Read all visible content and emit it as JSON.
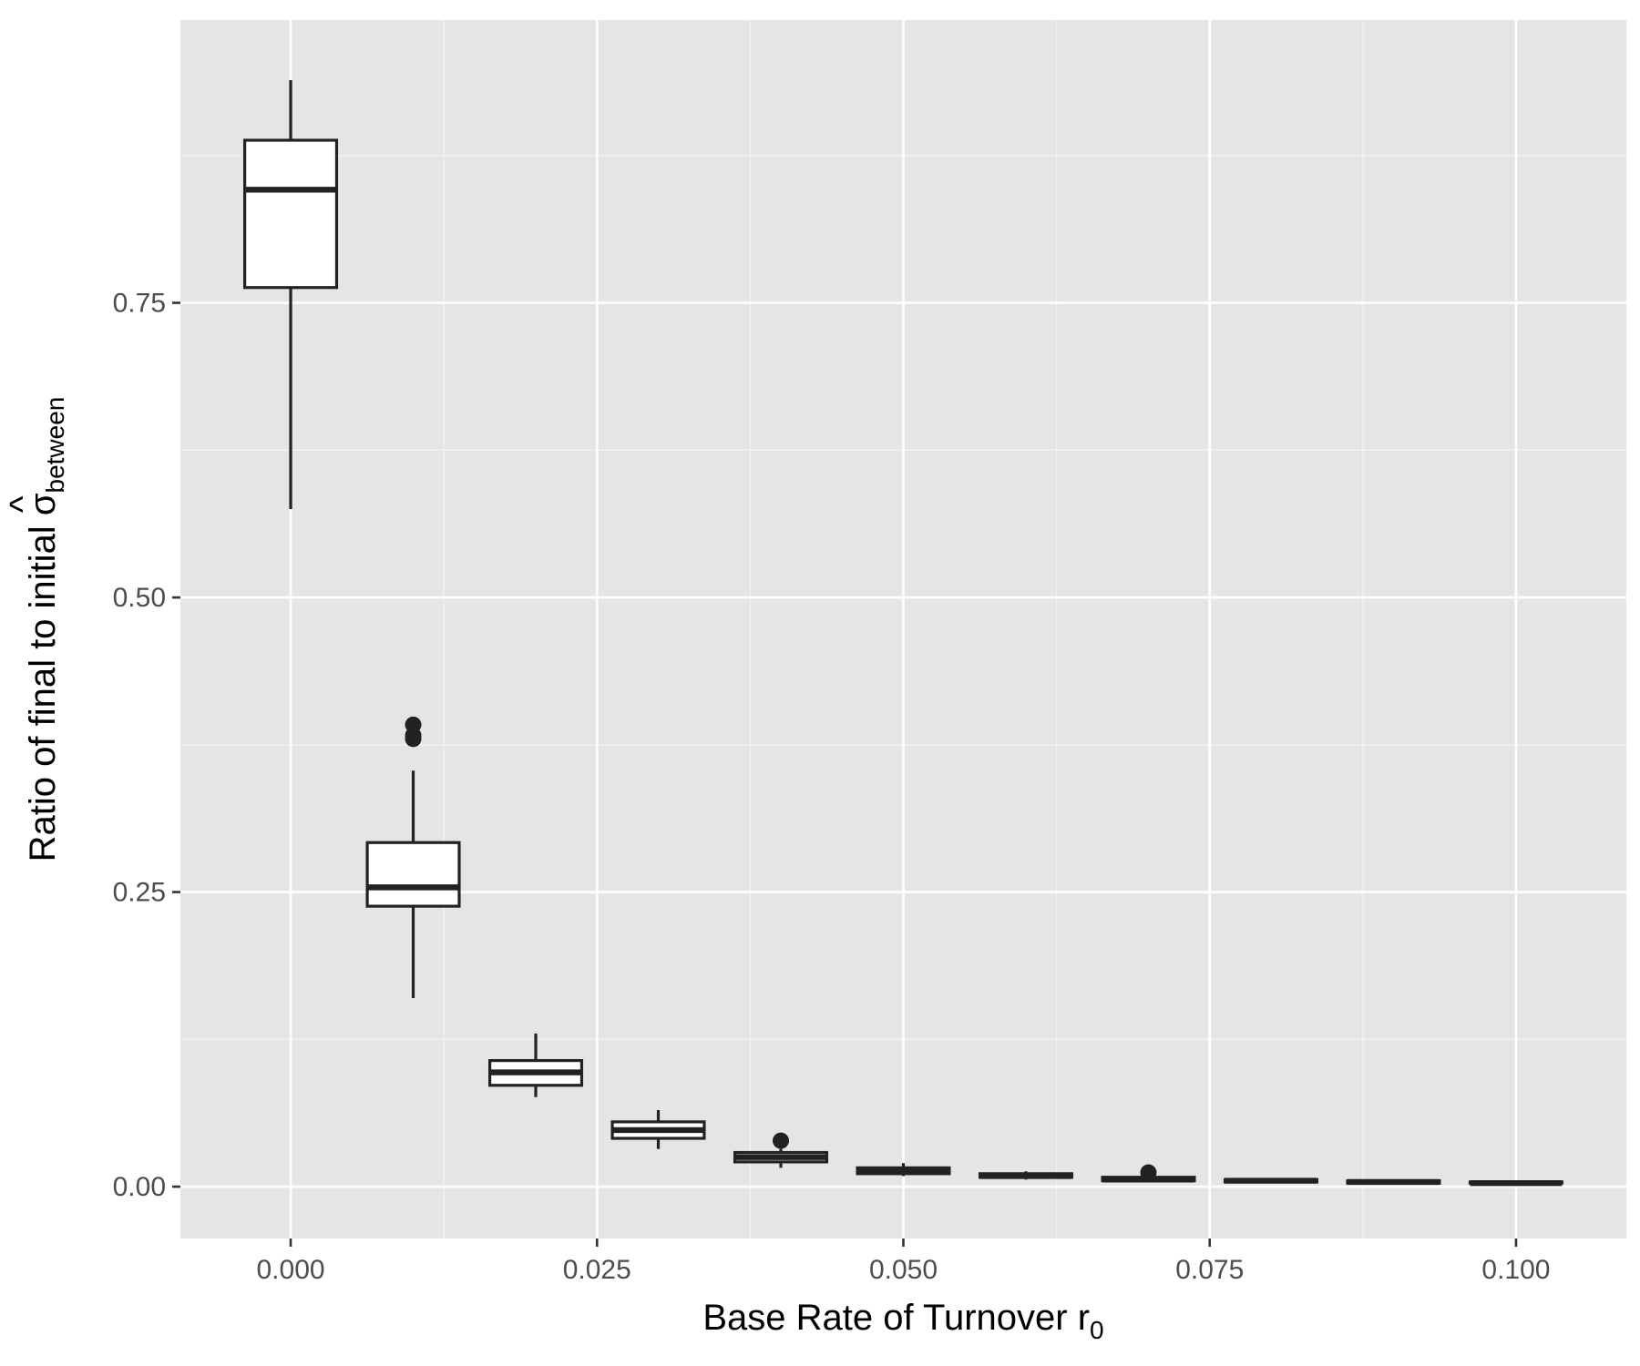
{
  "chart_data": {
    "type": "boxplot",
    "xlabel": {
      "main": "Base Rate of Turnover r",
      "subscript": "0"
    },
    "ylabel": {
      "main": "Ratio of final to initial ",
      "symbol": "σ",
      "hat": "^",
      "subscript": "between"
    },
    "xlim": [
      -0.009,
      0.109
    ],
    "ylim": [
      -0.044,
      0.99
    ],
    "x_ticks": [
      {
        "value": 0.0,
        "label": "0.000"
      },
      {
        "value": 0.025,
        "label": "0.025"
      },
      {
        "value": 0.05,
        "label": "0.050"
      },
      {
        "value": 0.075,
        "label": "0.075"
      },
      {
        "value": 0.1,
        "label": "0.100"
      }
    ],
    "y_ticks": [
      {
        "value": 0.0,
        "label": "0.00"
      },
      {
        "value": 0.25,
        "label": "0.25"
      },
      {
        "value": 0.5,
        "label": "0.50"
      },
      {
        "value": 0.75,
        "label": "0.75"
      }
    ],
    "grid": true,
    "box_width": 0.0075,
    "boxes": [
      {
        "x": 0.0,
        "whisker_low": 0.575,
        "q1": 0.763,
        "median": 0.846,
        "q3": 0.888,
        "whisker_high": 0.939,
        "outliers": []
      },
      {
        "x": 0.01,
        "whisker_low": 0.16,
        "q1": 0.238,
        "median": 0.254,
        "q3": 0.292,
        "whisker_high": 0.353,
        "outliers": [
          0.392,
          0.383,
          0.38
        ]
      },
      {
        "x": 0.02,
        "whisker_low": 0.076,
        "q1": 0.086,
        "median": 0.097,
        "q3": 0.107,
        "whisker_high": 0.13,
        "outliers": []
      },
      {
        "x": 0.03,
        "whisker_low": 0.032,
        "q1": 0.041,
        "median": 0.048,
        "q3": 0.055,
        "whisker_high": 0.065,
        "outliers": []
      },
      {
        "x": 0.04,
        "whisker_low": 0.016,
        "q1": 0.021,
        "median": 0.025,
        "q3": 0.029,
        "whisker_high": 0.032,
        "outliers": [
          0.039
        ]
      },
      {
        "x": 0.05,
        "whisker_low": 0.009,
        "q1": 0.011,
        "median": 0.013,
        "q3": 0.016,
        "whisker_high": 0.02,
        "outliers": []
      },
      {
        "x": 0.06,
        "whisker_low": 0.006,
        "q1": 0.008,
        "median": 0.009,
        "q3": 0.011,
        "whisker_high": 0.013,
        "outliers": []
      },
      {
        "x": 0.07,
        "whisker_low": 0.004,
        "q1": 0.005,
        "median": 0.006,
        "q3": 0.008,
        "whisker_high": 0.009,
        "outliers": [
          0.012
        ]
      },
      {
        "x": 0.08,
        "whisker_low": 0.003,
        "q1": 0.004,
        "median": 0.005,
        "q3": 0.006,
        "whisker_high": 0.007,
        "outliers": []
      },
      {
        "x": 0.09,
        "whisker_low": 0.002,
        "q1": 0.003,
        "median": 0.004,
        "q3": 0.005,
        "whisker_high": 0.006,
        "outliers": []
      },
      {
        "x": 0.1,
        "whisker_low": 0.002,
        "q1": 0.003,
        "median": 0.003,
        "q3": 0.004,
        "whisker_high": 0.005,
        "outliers": []
      }
    ],
    "colors": {
      "panel_background": "#e5e5e5",
      "grid_major": "#ffffff",
      "grid_minor": "#f2f2f2",
      "box_fill": "#ffffff",
      "box_line": "#222222",
      "outlier": "#222222",
      "tick_label": "#4d4d4d",
      "axis_title": "#000000"
    }
  }
}
